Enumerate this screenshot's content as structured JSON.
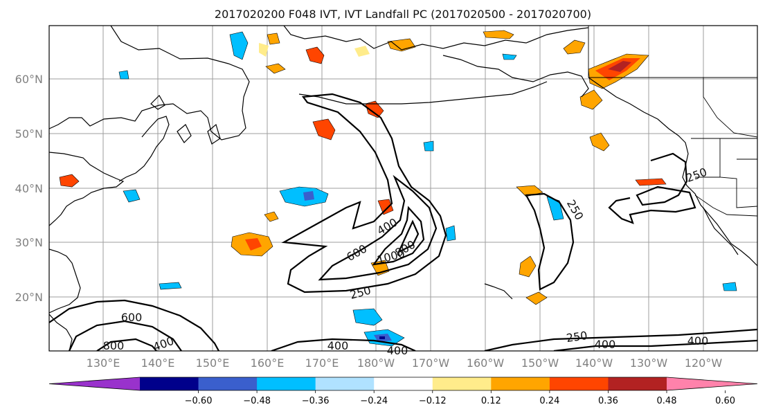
{
  "title": "2017020200 F048 IVT, IVT Landfall PC (2017020500 - 2017020700)",
  "lat_labels": [
    "60°N",
    "50°N",
    "40°N",
    "30°N",
    "20°N"
  ],
  "lon_labels": [
    "130°E",
    "140°E",
    "150°E",
    "160°E",
    "170°E",
    "180°W",
    "170°W",
    "160°W",
    "150°W",
    "140°W",
    "130°W",
    "120°W"
  ],
  "contour_labels": [
    "250",
    "250",
    "400",
    "600",
    "800",
    "1000",
    "250",
    "250",
    "600",
    "800",
    "400",
    "400",
    "400",
    "250",
    "400",
    "400"
  ],
  "colorbar": {
    "colors": [
      "#9932cc",
      "#00008b",
      "#3a5fcd",
      "#00bfff",
      "#b0e2ff",
      "#ffffff",
      "#ffec8b",
      "#ffa500",
      "#ff4500",
      "#b22222",
      "#ff82ab"
    ],
    "ticks": [
      "−0.60",
      "−0.48",
      "−0.36",
      "−0.24",
      "−0.12",
      "0.12",
      "0.24",
      "0.36",
      "0.48",
      "0.60"
    ]
  }
}
